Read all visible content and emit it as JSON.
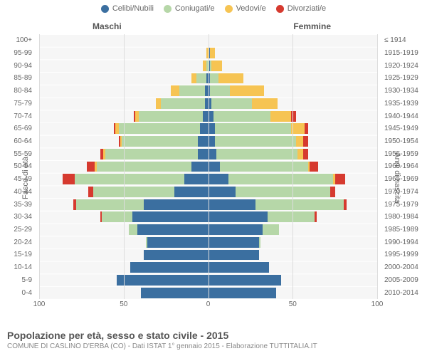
{
  "legend": [
    {
      "label": "Celibi/Nubili",
      "color": "#3b6fa0"
    },
    {
      "label": "Coniugati/e",
      "color": "#b6d7a8"
    },
    {
      "label": "Vedovi/e",
      "color": "#f6c453"
    },
    {
      "label": "Divorziati/e",
      "color": "#d63a2f"
    }
  ],
  "header_male": "Maschi",
  "header_female": "Femmine",
  "axis_left_title": "Fasce di età",
  "axis_right_title": "Anni di nascita",
  "x_max": 100,
  "x_ticks": [
    100,
    50,
    0,
    50,
    100
  ],
  "colors": {
    "bg": "#f6f6f6",
    "grid": "#dddddd"
  },
  "age_labels": [
    "100+",
    "95-99",
    "90-94",
    "85-89",
    "80-84",
    "75-79",
    "70-74",
    "65-69",
    "60-64",
    "55-59",
    "50-54",
    "45-49",
    "40-44",
    "35-39",
    "30-34",
    "25-29",
    "20-24",
    "15-19",
    "10-14",
    "5-9",
    "0-4"
  ],
  "birth_labels": [
    "≤ 1914",
    "1915-1919",
    "1920-1924",
    "1925-1929",
    "1930-1934",
    "1935-1939",
    "1940-1944",
    "1945-1949",
    "1950-1954",
    "1955-1959",
    "1960-1964",
    "1965-1969",
    "1970-1974",
    "1975-1979",
    "1980-1984",
    "1985-1989",
    "1990-1994",
    "1995-1999",
    "2000-2004",
    "2005-2009",
    "2010-2014"
  ],
  "male": [
    {
      "c": 0,
      "m": 0,
      "w": 0,
      "d": 0
    },
    {
      "c": 0,
      "m": 0,
      "w": 1,
      "d": 0
    },
    {
      "c": 0,
      "m": 1,
      "w": 2,
      "d": 0
    },
    {
      "c": 1,
      "m": 6,
      "w": 3,
      "d": 0
    },
    {
      "c": 2,
      "m": 15,
      "w": 5,
      "d": 0
    },
    {
      "c": 2,
      "m": 26,
      "w": 3,
      "d": 0
    },
    {
      "c": 3,
      "m": 38,
      "w": 2,
      "d": 1
    },
    {
      "c": 5,
      "m": 48,
      "w": 2,
      "d": 1
    },
    {
      "c": 6,
      "m": 45,
      "w": 1,
      "d": 1
    },
    {
      "c": 6,
      "m": 55,
      "w": 1,
      "d": 2
    },
    {
      "c": 10,
      "m": 56,
      "w": 1,
      "d": 5
    },
    {
      "c": 14,
      "m": 65,
      "w": 0,
      "d": 7
    },
    {
      "c": 20,
      "m": 48,
      "w": 0,
      "d": 3
    },
    {
      "c": 38,
      "m": 40,
      "w": 0,
      "d": 2
    },
    {
      "c": 45,
      "m": 18,
      "w": 0,
      "d": 1
    },
    {
      "c": 42,
      "m": 5,
      "w": 0,
      "d": 0
    },
    {
      "c": 36,
      "m": 1,
      "w": 0,
      "d": 0
    },
    {
      "c": 38,
      "m": 0,
      "w": 0,
      "d": 0
    },
    {
      "c": 46,
      "m": 0,
      "w": 0,
      "d": 0
    },
    {
      "c": 54,
      "m": 0,
      "w": 0,
      "d": 0
    },
    {
      "c": 40,
      "m": 0,
      "w": 0,
      "d": 0
    }
  ],
  "female": [
    {
      "c": 0,
      "m": 0,
      "w": 0,
      "d": 0
    },
    {
      "c": 1,
      "m": 0,
      "w": 3,
      "d": 0
    },
    {
      "c": 1,
      "m": 1,
      "w": 6,
      "d": 0
    },
    {
      "c": 1,
      "m": 5,
      "w": 15,
      "d": 0
    },
    {
      "c": 1,
      "m": 12,
      "w": 20,
      "d": 0
    },
    {
      "c": 2,
      "m": 24,
      "w": 15,
      "d": 0
    },
    {
      "c": 3,
      "m": 34,
      "w": 12,
      "d": 3
    },
    {
      "c": 4,
      "m": 45,
      "w": 8,
      "d": 2
    },
    {
      "c": 4,
      "m": 48,
      "w": 4,
      "d": 3
    },
    {
      "c": 5,
      "m": 48,
      "w": 3,
      "d": 3
    },
    {
      "c": 7,
      "m": 52,
      "w": 1,
      "d": 5
    },
    {
      "c": 12,
      "m": 62,
      "w": 1,
      "d": 6
    },
    {
      "c": 16,
      "m": 56,
      "w": 0,
      "d": 3
    },
    {
      "c": 28,
      "m": 52,
      "w": 0,
      "d": 2
    },
    {
      "c": 35,
      "m": 28,
      "w": 0,
      "d": 1
    },
    {
      "c": 32,
      "m": 10,
      "w": 0,
      "d": 0
    },
    {
      "c": 30,
      "m": 1,
      "w": 0,
      "d": 0
    },
    {
      "c": 30,
      "m": 0,
      "w": 0,
      "d": 0
    },
    {
      "c": 36,
      "m": 0,
      "w": 0,
      "d": 0
    },
    {
      "c": 43,
      "m": 0,
      "w": 0,
      "d": 0
    },
    {
      "c": 40,
      "m": 0,
      "w": 0,
      "d": 0
    }
  ],
  "footer_title": "Popolazione per età, sesso e stato civile - 2015",
  "footer_sub": "COMUNE DI CASLINO D'ERBA (CO) - Dati ISTAT 1° gennaio 2015 - Elaborazione TUTTITALIA.IT"
}
